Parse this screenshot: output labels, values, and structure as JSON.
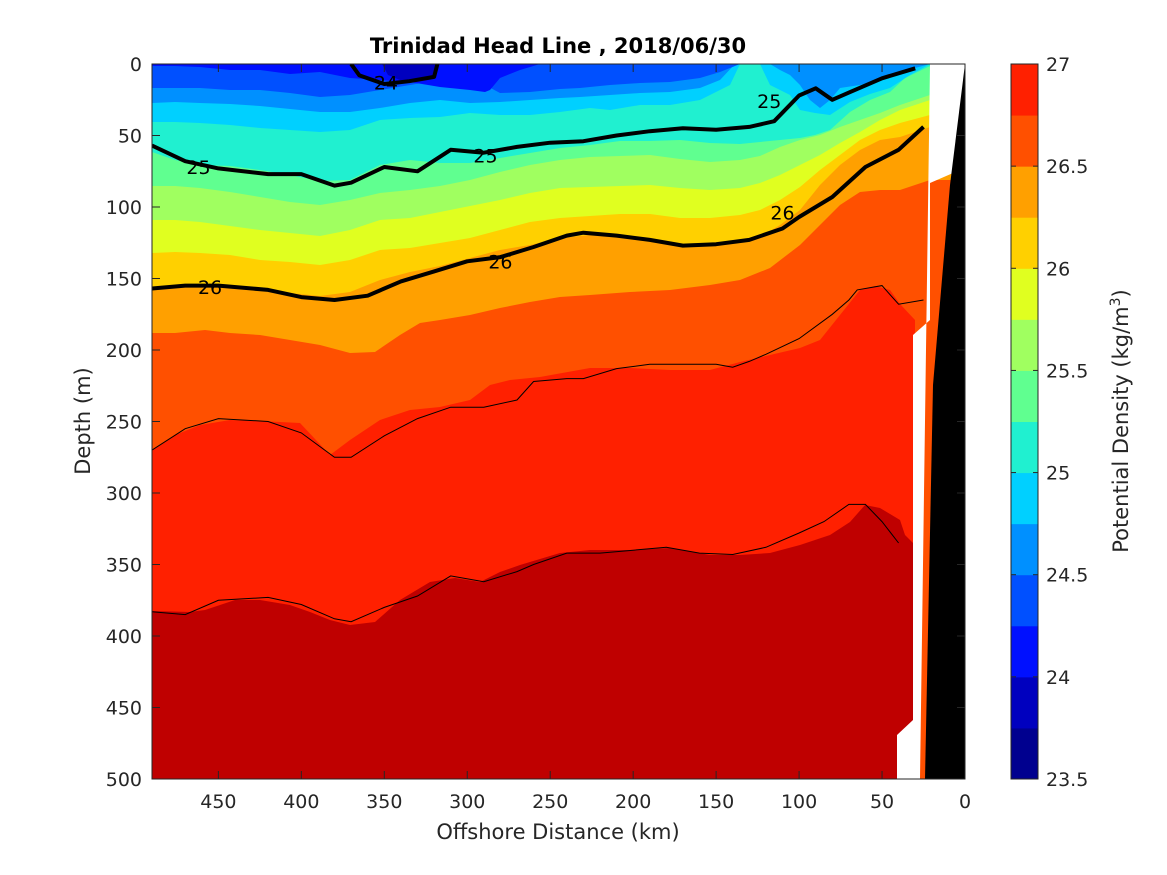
{
  "chart_data": {
    "type": "filled-contour",
    "title": "Trinidad Head Line , 2018/06/30",
    "xlabel": "Offshore Distance (km)",
    "ylabel": "Depth (m)",
    "xlim": [
      490,
      0
    ],
    "ylim": [
      0,
      500
    ],
    "x_ticks": [
      450,
      400,
      350,
      300,
      250,
      200,
      150,
      100,
      50,
      0
    ],
    "y_ticks": [
      0,
      50,
      100,
      150,
      200,
      250,
      300,
      350,
      400,
      450,
      500
    ],
    "colorbar": {
      "label": "Potential Density (kg/m",
      "label_sup": "3",
      "label_end": ")",
      "range": [
        23.5,
        27
      ],
      "step": 0.25,
      "tick_labels": [
        "27",
        "26.5",
        "26",
        "25.5",
        "25",
        "24.5",
        "24",
        "23.5"
      ],
      "colors": [
        "#00008f",
        "#0000bf",
        "#0010ff",
        "#0050ff",
        "#0090ff",
        "#00d0ff",
        "#20f0d0",
        "#60ff90",
        "#a0ff60",
        "#e0ff20",
        "#ffd000",
        "#ffa000",
        "#ff5000",
        "#ff2000",
        "#bf0000"
      ]
    },
    "contour_lines": [
      {
        "level": 26.5,
        "depths_km": [
          [
            490,
            270
          ],
          [
            470,
            255
          ],
          [
            450,
            248
          ],
          [
            420,
            250
          ],
          [
            400,
            258
          ],
          [
            380,
            275
          ],
          [
            370,
            275
          ],
          [
            350,
            260
          ],
          [
            330,
            248
          ],
          [
            310,
            240
          ],
          [
            290,
            240
          ],
          [
            270,
            235
          ],
          [
            260,
            222
          ],
          [
            240,
            220
          ],
          [
            230,
            220
          ],
          [
            210,
            213
          ],
          [
            190,
            210
          ],
          [
            170,
            210
          ],
          [
            150,
            210
          ],
          [
            140,
            212
          ],
          [
            130,
            208
          ],
          [
            120,
            203
          ],
          [
            100,
            192
          ],
          [
            80,
            175
          ],
          [
            70,
            165
          ],
          [
            65,
            158
          ],
          [
            50,
            155
          ],
          [
            40,
            168
          ],
          [
            25,
            165
          ]
        ]
      },
      {
        "level": 26.75,
        "depths_km": [
          [
            490,
            383
          ],
          [
            470,
            385
          ],
          [
            450,
            375
          ],
          [
            420,
            373
          ],
          [
            400,
            378
          ],
          [
            380,
            388
          ],
          [
            370,
            390
          ],
          [
            350,
            380
          ],
          [
            330,
            372
          ],
          [
            310,
            358
          ],
          [
            290,
            362
          ],
          [
            270,
            355
          ],
          [
            260,
            350
          ],
          [
            240,
            342
          ],
          [
            220,
            342
          ],
          [
            200,
            340
          ],
          [
            180,
            338
          ],
          [
            160,
            342
          ],
          [
            140,
            343
          ],
          [
            120,
            338
          ],
          [
            100,
            328
          ],
          [
            85,
            320
          ],
          [
            70,
            308
          ],
          [
            60,
            308
          ],
          [
            50,
            320
          ],
          [
            40,
            335
          ]
        ]
      }
    ],
    "bold_contours": [
      {
        "level": 25,
        "label": "25",
        "points": [
          [
            490,
            57
          ],
          [
            470,
            68
          ],
          [
            450,
            73
          ],
          [
            420,
            77
          ],
          [
            400,
            77
          ],
          [
            380,
            85
          ],
          [
            370,
            83
          ],
          [
            350,
            72
          ],
          [
            330,
            75
          ],
          [
            310,
            60
          ],
          [
            290,
            62
          ],
          [
            270,
            58
          ],
          [
            250,
            55
          ],
          [
            230,
            54
          ],
          [
            210,
            50
          ],
          [
            190,
            47
          ],
          [
            170,
            45
          ],
          [
            150,
            46
          ],
          [
            130,
            44
          ],
          [
            115,
            40
          ],
          [
            100,
            22
          ],
          [
            90,
            17
          ],
          [
            80,
            25
          ],
          [
            70,
            20
          ],
          [
            50,
            10
          ],
          [
            30,
            3
          ]
        ]
      },
      {
        "level": 26,
        "label": "26",
        "points": [
          [
            490,
            157
          ],
          [
            470,
            155
          ],
          [
            450,
            155
          ],
          [
            420,
            158
          ],
          [
            400,
            163
          ],
          [
            380,
            165
          ],
          [
            360,
            162
          ],
          [
            340,
            152
          ],
          [
            320,
            145
          ],
          [
            300,
            138
          ],
          [
            280,
            135
          ],
          [
            260,
            128
          ],
          [
            240,
            120
          ],
          [
            230,
            118
          ],
          [
            210,
            120
          ],
          [
            190,
            123
          ],
          [
            170,
            127
          ],
          [
            150,
            126
          ],
          [
            130,
            123
          ],
          [
            110,
            115
          ],
          [
            100,
            107
          ],
          [
            80,
            93
          ],
          [
            60,
            72
          ],
          [
            40,
            60
          ],
          [
            25,
            44
          ]
        ]
      },
      {
        "level": 24,
        "label": "24",
        "points": [
          [
            370,
            0
          ],
          [
            365,
            8
          ],
          [
            350,
            14
          ],
          [
            335,
            12
          ],
          [
            320,
            9
          ],
          [
            318,
            0
          ]
        ]
      }
    ],
    "contour_labels": [
      {
        "text": "24",
        "x": 349,
        "y": 13
      },
      {
        "text": "25",
        "x": 462,
        "y": 72
      },
      {
        "text": "25",
        "x": 289,
        "y": 64
      },
      {
        "text": "25",
        "x": 118,
        "y": 26
      },
      {
        "text": "26",
        "x": 455,
        "y": 156
      },
      {
        "text": "26",
        "x": 280,
        "y": 138
      },
      {
        "text": "26",
        "x": 110,
        "y": 104
      }
    ]
  }
}
